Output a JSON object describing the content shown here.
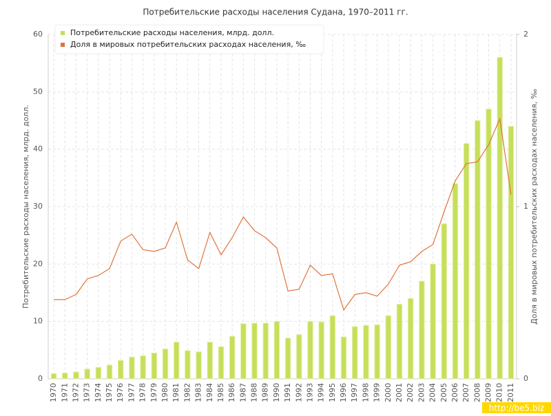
{
  "chart_data": {
    "type": "bar_line",
    "title": "Потребительские расходы населения Судана, 1970–2011 гг.",
    "y_label": "Потребительские расходы населения, млрд. долл.",
    "y2_label": "Доля в мировых потребительских расходах населения, ‰",
    "watermark": "http://be5.biz",
    "categories": [
      "1970",
      "1971",
      "1972",
      "1973",
      "1974",
      "1975",
      "1976",
      "1977",
      "1978",
      "1979",
      "1980",
      "1981",
      "1982",
      "1983",
      "1984",
      "1985",
      "1986",
      "1987",
      "1988",
      "1989",
      "1990",
      "1991",
      "1992",
      "1993",
      "1994",
      "1995",
      "1996",
      "1997",
      "1998",
      "1999",
      "2000",
      "2001",
      "2002",
      "2003",
      "2004",
      "2005",
      "2006",
      "2007",
      "2008",
      "2009",
      "2010",
      "2011"
    ],
    "series": [
      {
        "name": "Потребительские расходы населения, млрд. долл.",
        "color": "#c6df5a",
        "kind": "bar",
        "values": [
          0.9,
          1.0,
          1.2,
          1.7,
          2.0,
          2.4,
          3.2,
          3.8,
          4.0,
          4.5,
          5.2,
          6.4,
          4.9,
          4.7,
          6.4,
          5.6,
          7.4,
          9.6,
          9.7,
          9.7,
          10.0,
          7.1,
          7.7,
          10.0,
          9.9,
          11.0,
          7.3,
          9.1,
          9.3,
          9.4,
          11.0,
          13.0,
          14.0,
          17.0,
          20.0,
          27.0,
          34.0,
          41.0,
          45.0,
          47.0,
          56.0,
          44.0
        ]
      },
      {
        "name": "Доля в мировых потребительских расходах населения, ‰",
        "color": "#e0733c",
        "kind": "line",
        "axis": "y2",
        "values": [
          0.46,
          0.46,
          0.49,
          0.58,
          0.6,
          0.64,
          0.8,
          0.84,
          0.75,
          0.74,
          0.76,
          0.91,
          0.69,
          0.64,
          0.85,
          0.72,
          0.82,
          0.94,
          0.86,
          0.82,
          0.76,
          0.51,
          0.52,
          0.66,
          0.6,
          0.61,
          0.4,
          0.49,
          0.5,
          0.48,
          0.55,
          0.66,
          0.68,
          0.74,
          0.78,
          0.97,
          1.15,
          1.25,
          1.26,
          1.36,
          1.51,
          1.07
        ]
      }
    ],
    "ylim": [
      0,
      60
    ],
    "yticks": [
      0,
      10,
      20,
      30,
      40,
      50,
      60
    ],
    "y2lim": [
      0,
      2
    ],
    "y2ticks": [
      0,
      1,
      2
    ],
    "grid": true,
    "legend": "top-left"
  }
}
